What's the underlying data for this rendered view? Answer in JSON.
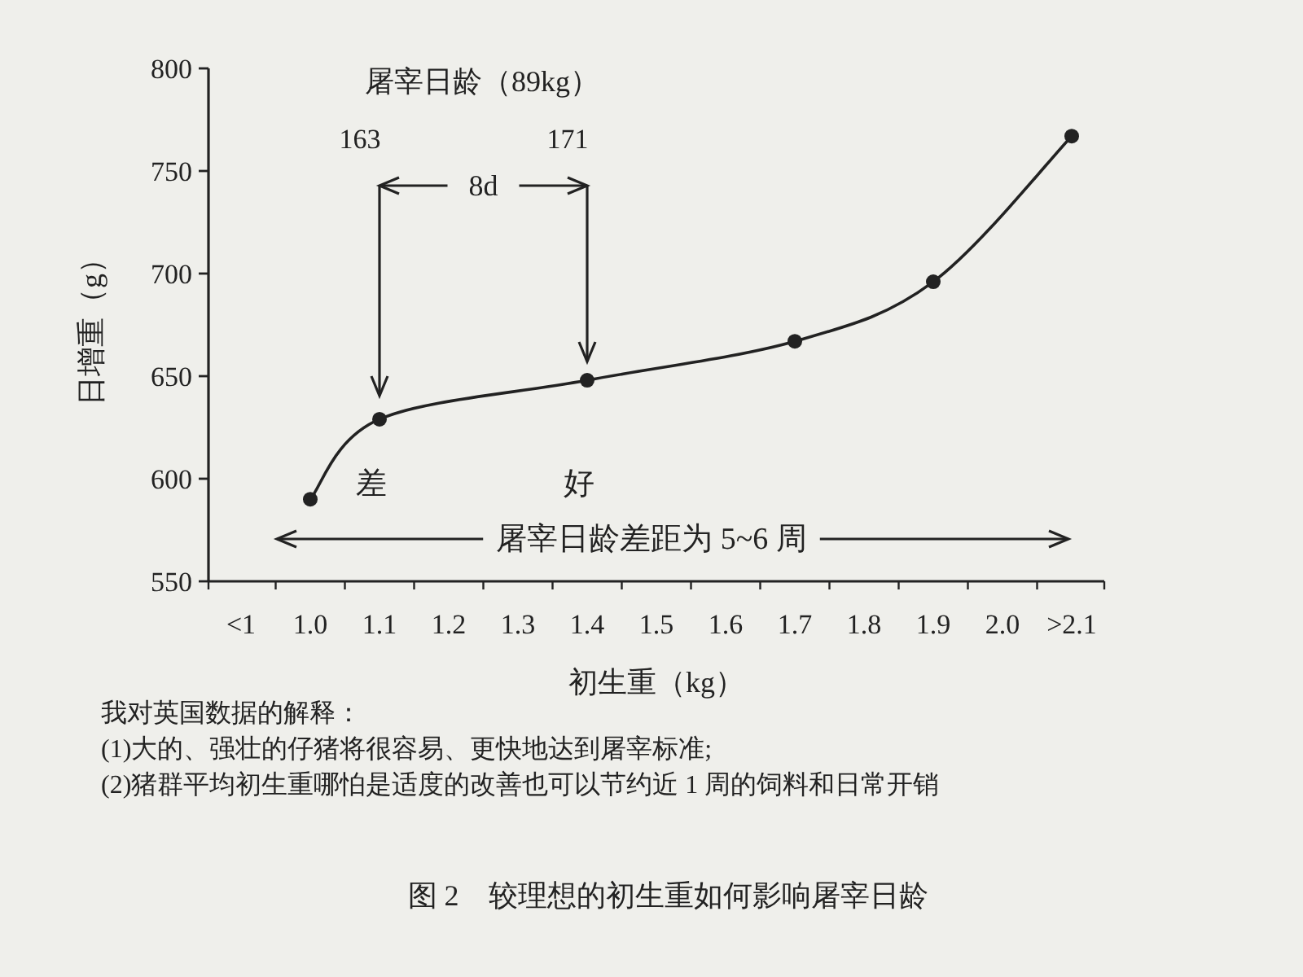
{
  "chart_data": {
    "type": "line",
    "xlabel": "初生重（kg）",
    "ylabel": "日增重（g）",
    "categories": [
      "<1",
      "1.0",
      "1.1",
      "1.2",
      "1.3",
      "1.4",
      "1.5",
      "1.6",
      "1.7",
      "1.8",
      "1.9",
      "2.0",
      ">2.1"
    ],
    "series": [
      {
        "color": "#222222",
        "values": [
          null,
          590,
          629,
          null,
          null,
          648,
          null,
          null,
          667,
          null,
          696,
          null,
          767
        ]
      }
    ],
    "ylim": [
      550,
      800
    ],
    "yticks": [
      550,
      600,
      650,
      700,
      750,
      800
    ],
    "marker": "circle",
    "line_style": "solid",
    "grid": false,
    "annotations": [
      "屠宰日龄（89kg）",
      "163",
      "171",
      "8d",
      "差",
      "好",
      "屠宰日龄差距为 5~6 周",
      "我对英国数据的解释：",
      "(1)大的、强壮的仔猪将很容易、更快地达到屠宰标准;",
      "(2)猪群平均初生重哪怕是适度的改善也可以节约近 1 周的饲料和日常开销",
      "图 2　较理想的初生重如何影响屠宰日龄"
    ]
  }
}
